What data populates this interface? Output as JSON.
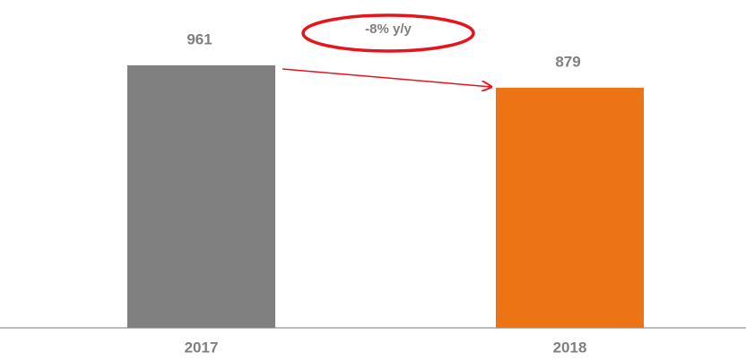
{
  "chart_data": {
    "type": "bar",
    "categories": [
      "2017",
      "2018"
    ],
    "values": [
      961,
      879
    ],
    "colors": [
      "#808080",
      "#ec7414"
    ],
    "ylim": [
      0,
      1200
    ],
    "annotation": "-8% y/y"
  }
}
